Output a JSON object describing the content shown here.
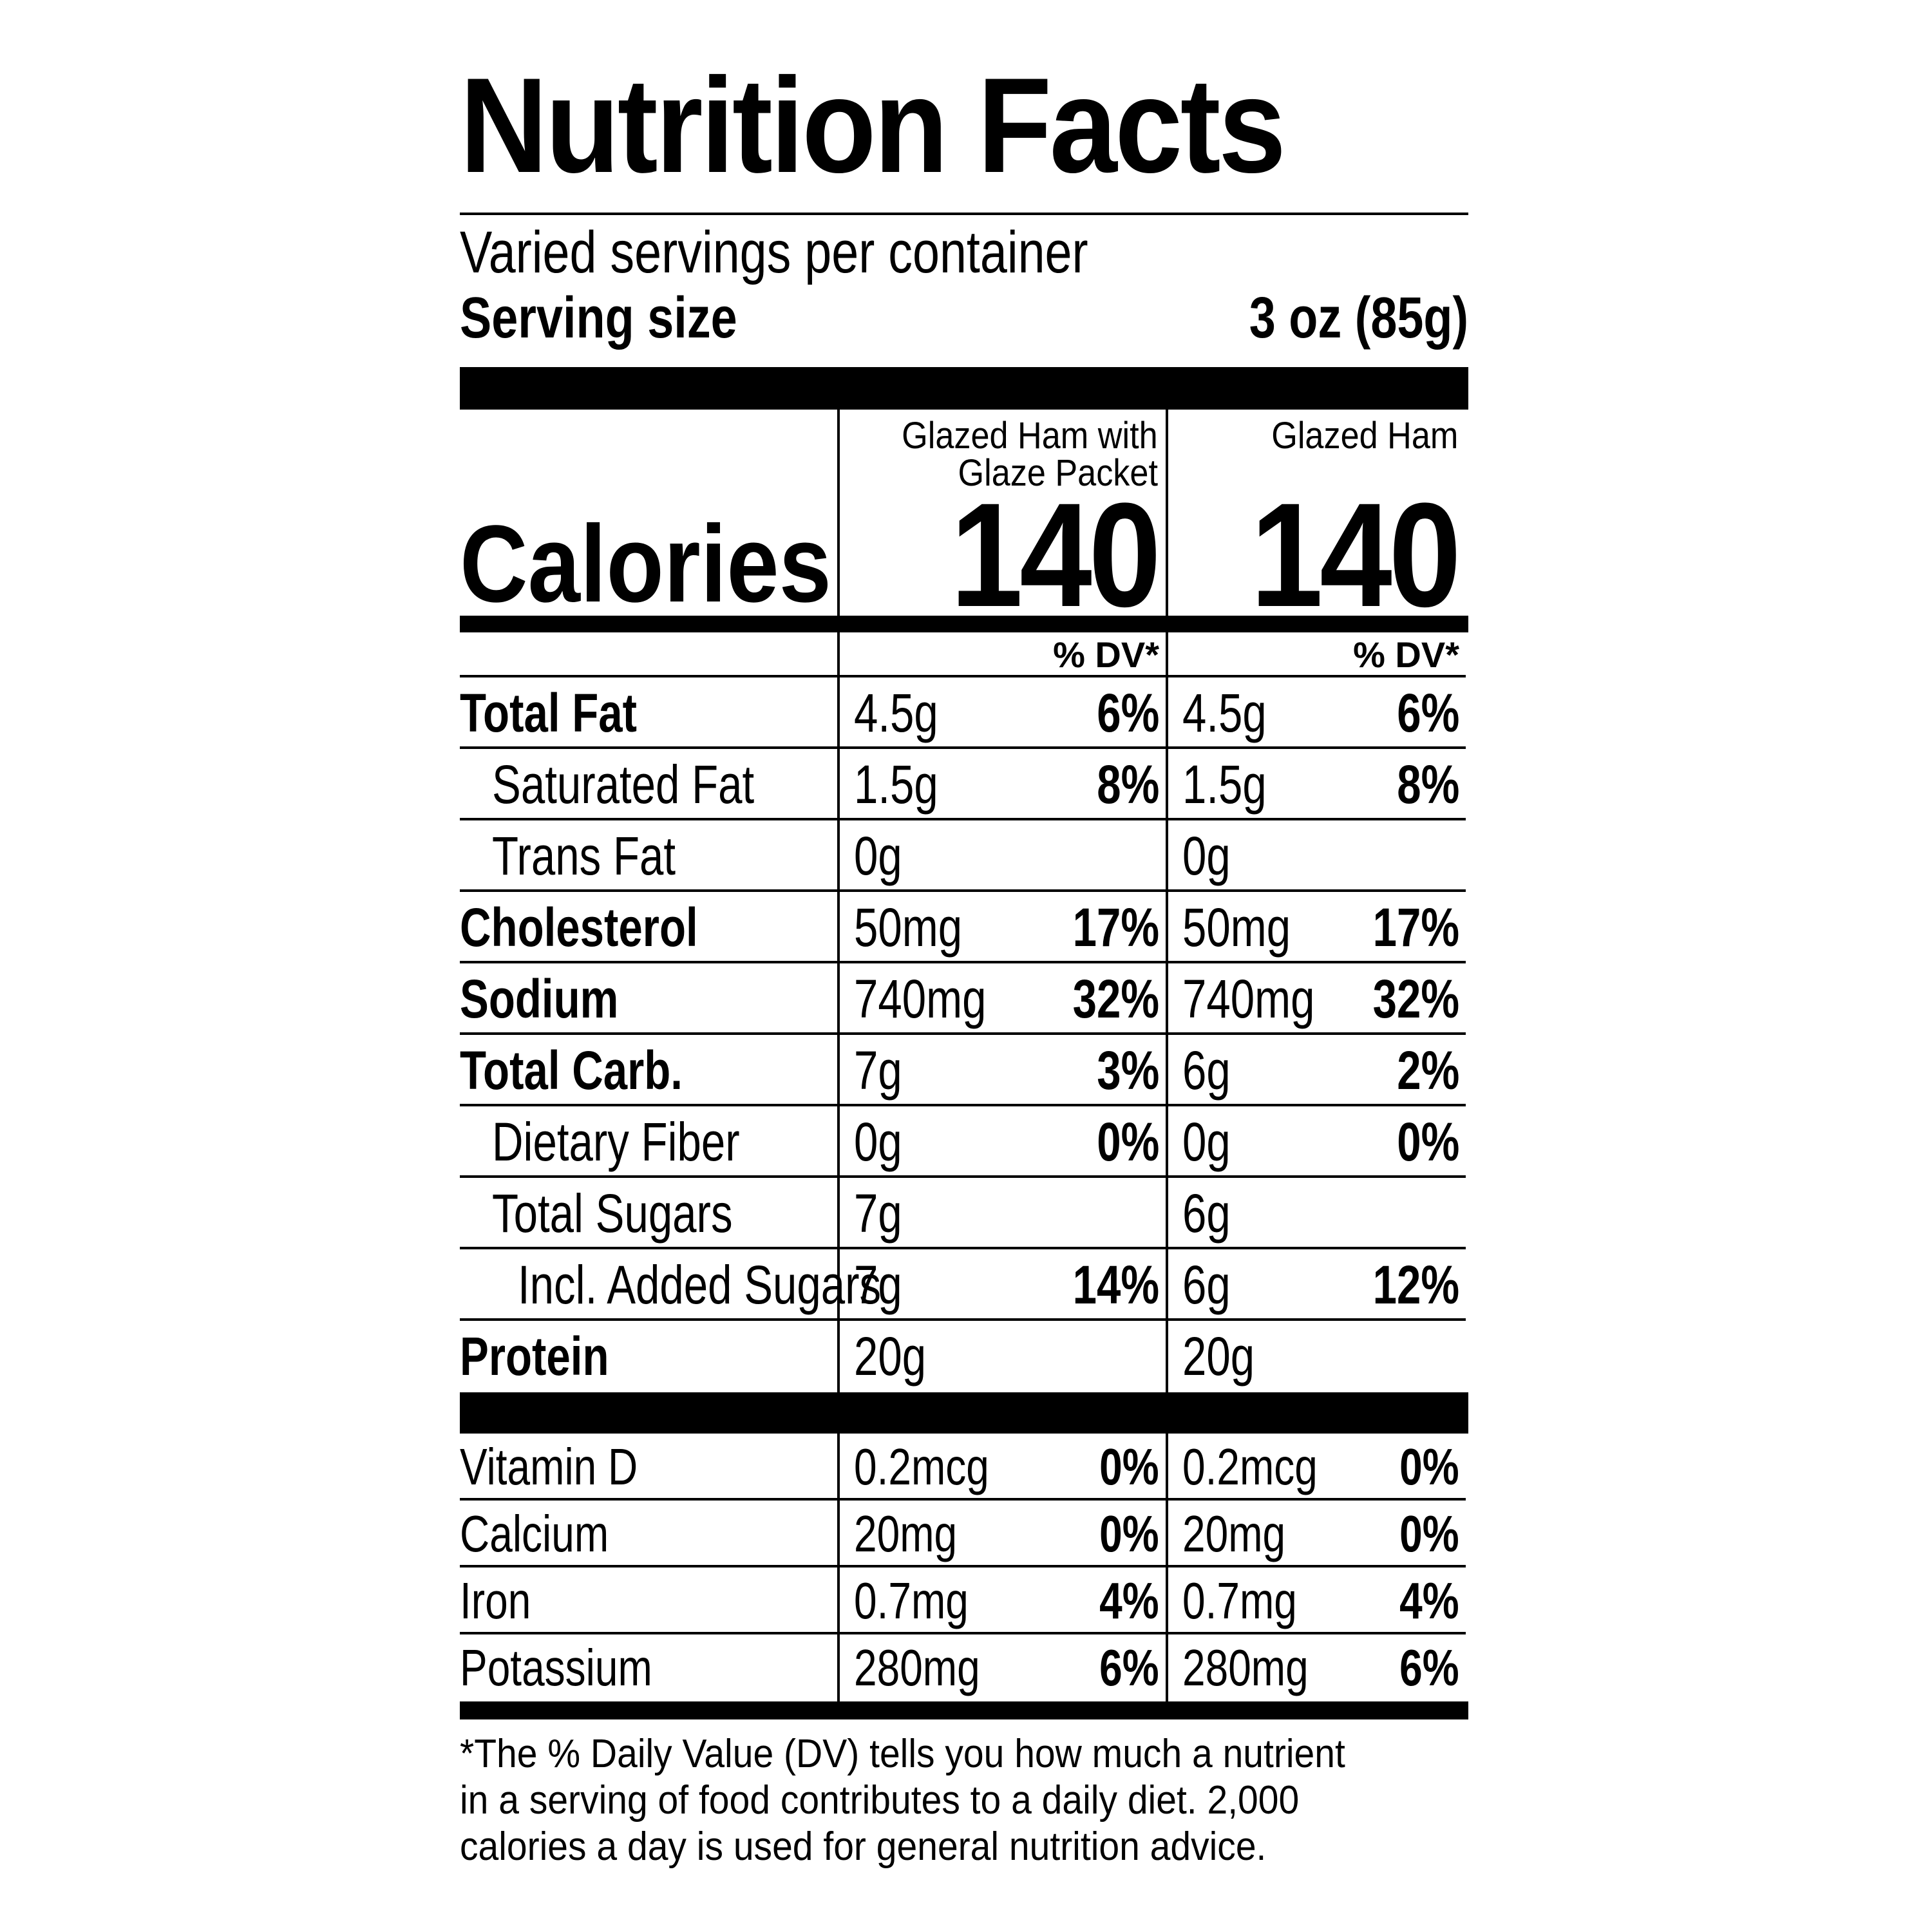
{
  "title": "Nutrition Facts",
  "servings_per_container": "Varied servings per container",
  "serving_size": {
    "label": "Serving size",
    "value": "3 oz (85g)"
  },
  "columns": [
    {
      "name_line1": "Glazed Ham with",
      "name_line2": "Glaze Packet",
      "calories": "140"
    },
    {
      "name_line1": "Glazed Ham",
      "name_line2": "",
      "calories": "140"
    }
  ],
  "calories_label": "Calories",
  "dv_header": "% DV*",
  "nutrients": [
    {
      "name": "Total Fat",
      "c1_amt": "4.5g",
      "c1_dv": "6%",
      "c2_amt": "4.5g",
      "c2_dv": "6%"
    },
    {
      "name": "Saturated Fat",
      "c1_amt": "1.5g",
      "c1_dv": "8%",
      "c2_amt": "1.5g",
      "c2_dv": "8%"
    },
    {
      "name": "Trans Fat",
      "c1_amt": "0g",
      "c1_dv": "",
      "c2_amt": "0g",
      "c2_dv": ""
    },
    {
      "name": "Cholesterol",
      "c1_amt": "50mg",
      "c1_dv": "17%",
      "c2_amt": "50mg",
      "c2_dv": "17%"
    },
    {
      "name": "Sodium",
      "c1_amt": "740mg",
      "c1_dv": "32%",
      "c2_amt": "740mg",
      "c2_dv": "32%"
    },
    {
      "name": "Total Carb.",
      "c1_amt": "7g",
      "c1_dv": "3%",
      "c2_amt": "6g",
      "c2_dv": "2%"
    },
    {
      "name": "Dietary Fiber",
      "c1_amt": "0g",
      "c1_dv": "0%",
      "c2_amt": "0g",
      "c2_dv": "0%"
    },
    {
      "name": "Total Sugars",
      "c1_amt": "7g",
      "c1_dv": "",
      "c2_amt": "6g",
      "c2_dv": ""
    },
    {
      "name": "Incl. Added Sugars",
      "c1_amt": "7g",
      "c1_dv": "14%",
      "c2_amt": "6g",
      "c2_dv": "12%"
    },
    {
      "name": "Protein",
      "c1_amt": "20g",
      "c1_dv": "",
      "c2_amt": "20g",
      "c2_dv": ""
    }
  ],
  "vitamins": [
    {
      "name": "Vitamin D",
      "c1_amt": "0.2mcg",
      "c1_dv": "0%",
      "c2_amt": "0.2mcg",
      "c2_dv": "0%"
    },
    {
      "name": "Calcium",
      "c1_amt": "20mg",
      "c1_dv": "0%",
      "c2_amt": "20mg",
      "c2_dv": "0%"
    },
    {
      "name": "Iron",
      "c1_amt": "0.7mg",
      "c1_dv": "4%",
      "c2_amt": "0.7mg",
      "c2_dv": "4%"
    },
    {
      "name": "Potassium",
      "c1_amt": "280mg",
      "c1_dv": "6%",
      "c2_amt": "280mg",
      "c2_dv": "6%"
    }
  ],
  "footnote": [
    "*The % Daily Value (DV) tells you how much a nutrient",
    "in a serving of food contributes to a daily diet. 2,000",
    "calories a day is used for general nutrition advice."
  ]
}
